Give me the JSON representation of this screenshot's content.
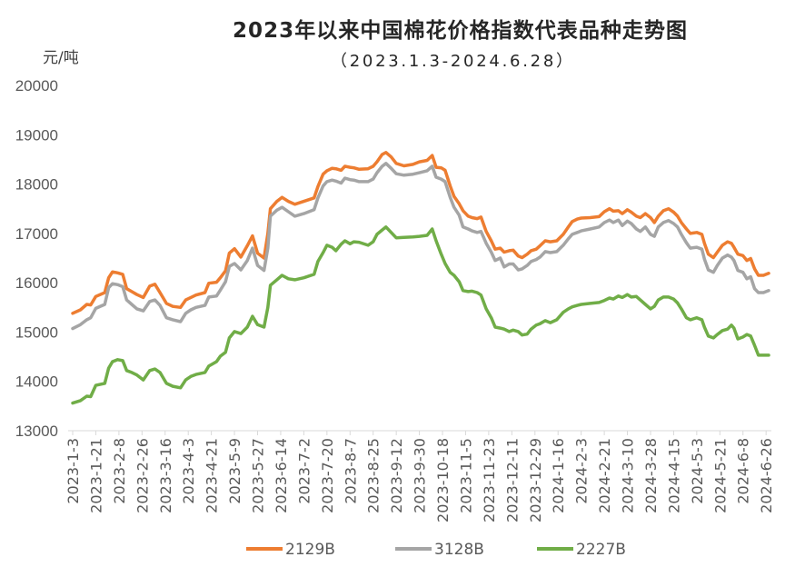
{
  "chart_data": {
    "type": "line",
    "title": "2023年以来中国棉花价格指数代表品种走势图",
    "subtitle": "（2023.1.3-2024.6.28）",
    "ylabel": "元/吨",
    "xlabel": "",
    "ylim": [
      13000,
      20000
    ],
    "xlim": [
      "2023-1-3",
      "2024-6-28"
    ],
    "grid": false,
    "legend_position": "bottom",
    "y_ticks": [
      20000,
      19000,
      18000,
      17000,
      16000,
      15000,
      14000,
      13000
    ],
    "x_tick_labels": [
      "2023-1-3",
      "2023-1-21",
      "2023-2-8",
      "2023-2-26",
      "2023-3-16",
      "2023-4-3",
      "2023-4-21",
      "2023-5-9",
      "2023-5-27",
      "2023-6-14",
      "2023-7-2",
      "2023-7-20",
      "2023-8-7",
      "2023-8-25",
      "2023-9-12",
      "2023-9-30",
      "2023-10-18",
      "2023-11-5",
      "2023-11-23",
      "2023-12-11",
      "2023-12-29",
      "2024-1-16",
      "2024-2-3",
      "2024-2-21",
      "2024-3-10",
      "2024-3-28",
      "2024-4-15",
      "2024-5-3",
      "2024-5-21",
      "2024-6-8",
      "2024-6-26"
    ],
    "x": [
      "2023-1-3",
      "2023-1-9",
      "2023-1-14",
      "2023-1-17",
      "2023-1-21",
      "2023-1-28",
      "2023-1-31",
      "2023-2-3",
      "2023-2-7",
      "2023-2-11",
      "2023-2-14",
      "2023-2-18",
      "2023-2-22",
      "2023-2-27",
      "2023-3-4",
      "2023-3-8",
      "2023-3-12",
      "2023-3-17",
      "2023-3-22",
      "2023-3-28",
      "2023-4-1",
      "2023-4-5",
      "2023-4-9",
      "2023-4-16",
      "2023-4-19",
      "2023-4-25",
      "2023-4-28",
      "2023-5-2",
      "2023-5-5",
      "2023-5-9",
      "2023-5-14",
      "2023-5-19",
      "2023-5-23",
      "2023-5-27",
      "2023-6-1",
      "2023-6-4",
      "2023-6-6",
      "2023-6-11",
      "2023-6-15",
      "2023-6-20",
      "2023-6-25",
      "2023-7-2",
      "2023-7-10",
      "2023-7-13",
      "2023-7-17",
      "2023-7-20",
      "2023-7-24",
      "2023-7-27",
      "2023-7-31",
      "2023-8-3",
      "2023-8-7",
      "2023-8-10",
      "2023-8-14",
      "2023-8-21",
      "2023-8-25",
      "2023-8-28",
      "2023-9-1",
      "2023-9-4",
      "2023-9-8",
      "2023-9-12",
      "2023-9-18",
      "2023-9-25",
      "2023-9-30",
      "2023-10-6",
      "2023-10-10",
      "2023-10-13",
      "2023-10-17",
      "2023-10-20",
      "2023-10-24",
      "2023-10-27",
      "2023-10-31",
      "2023-11-3",
      "2023-11-7",
      "2023-11-10",
      "2023-11-14",
      "2023-11-17",
      "2023-11-21",
      "2023-11-25",
      "2023-11-28",
      "2023-12-2",
      "2023-12-5",
      "2023-12-9",
      "2023-12-12",
      "2023-12-16",
      "2023-12-19",
      "2023-12-23",
      "2023-12-26",
      "2023-12-30",
      "2024-1-2",
      "2024-1-6",
      "2024-1-10",
      "2024-1-15",
      "2024-1-20",
      "2024-1-24",
      "2024-1-27",
      "2024-1-31",
      "2024-2-3",
      "2024-2-10",
      "2024-2-17",
      "2024-2-21",
      "2024-2-25",
      "2024-2-28",
      "2024-3-3",
      "2024-3-6",
      "2024-3-10",
      "2024-3-13",
      "2024-3-17",
      "2024-3-20",
      "2024-3-24",
      "2024-3-28",
      "2024-3-31",
      "2024-4-3",
      "2024-4-7",
      "2024-4-11",
      "2024-4-15",
      "2024-4-18",
      "2024-4-21",
      "2024-4-25",
      "2024-4-28",
      "2024-5-3",
      "2024-5-7",
      "2024-5-9",
      "2024-5-12",
      "2024-5-16",
      "2024-5-19",
      "2024-5-23",
      "2024-5-27",
      "2024-5-30",
      "2024-6-1",
      "2024-6-4",
      "2024-6-8",
      "2024-6-11",
      "2024-6-14",
      "2024-6-17",
      "2024-6-20",
      "2024-6-24",
      "2024-6-28"
    ],
    "series": [
      {
        "name": "2129B",
        "color": "#ED7D31",
        "values": [
          15380,
          15450,
          15560,
          15550,
          15720,
          15800,
          16100,
          16220,
          16200,
          16170,
          15880,
          15820,
          15760,
          15700,
          15930,
          15970,
          15800,
          15580,
          15520,
          15500,
          15650,
          15700,
          15750,
          15800,
          15990,
          16010,
          16100,
          16240,
          16600,
          16690,
          16520,
          16750,
          16950,
          16600,
          16500,
          17000,
          17500,
          17650,
          17730,
          17650,
          17590,
          17650,
          17720,
          17950,
          18200,
          18270,
          18320,
          18310,
          18280,
          18360,
          18340,
          18330,
          18300,
          18310,
          18360,
          18450,
          18600,
          18640,
          18550,
          18420,
          18370,
          18400,
          18450,
          18480,
          18580,
          18340,
          18330,
          18280,
          17960,
          17750,
          17600,
          17460,
          17350,
          17320,
          17300,
          17330,
          17040,
          16850,
          16680,
          16700,
          16620,
          16650,
          16660,
          16540,
          16510,
          16580,
          16650,
          16680,
          16750,
          16850,
          16830,
          16850,
          16980,
          17130,
          17240,
          17290,
          17310,
          17320,
          17340,
          17440,
          17500,
          17450,
          17460,
          17400,
          17480,
          17430,
          17350,
          17320,
          17400,
          17320,
          17220,
          17350,
          17460,
          17500,
          17430,
          17350,
          17220,
          17090,
          17000,
          17020,
          16980,
          16800,
          16580,
          16510,
          16620,
          16760,
          16830,
          16800,
          16720,
          16580,
          16550,
          16450,
          16490,
          16280,
          16150,
          16150,
          16190
        ]
      },
      {
        "name": "3128B",
        "color": "#A5A5A5",
        "values": [
          15070,
          15150,
          15250,
          15290,
          15480,
          15560,
          15900,
          15980,
          15960,
          15920,
          15650,
          15560,
          15470,
          15430,
          15620,
          15650,
          15540,
          15290,
          15250,
          15210,
          15380,
          15450,
          15500,
          15540,
          15710,
          15730,
          15850,
          16020,
          16330,
          16390,
          16260,
          16450,
          16700,
          16350,
          16250,
          16700,
          17350,
          17470,
          17530,
          17440,
          17350,
          17400,
          17480,
          17720,
          17960,
          18050,
          18080,
          18060,
          18020,
          18120,
          18090,
          18080,
          18050,
          18050,
          18100,
          18230,
          18360,
          18420,
          18320,
          18210,
          18180,
          18200,
          18230,
          18270,
          18360,
          18140,
          18100,
          18050,
          17730,
          17530,
          17370,
          17130,
          17090,
          17050,
          17020,
          17040,
          16800,
          16620,
          16450,
          16500,
          16320,
          16380,
          16380,
          16260,
          16280,
          16350,
          16430,
          16470,
          16520,
          16630,
          16610,
          16630,
          16760,
          16890,
          16980,
          17020,
          17050,
          17090,
          17130,
          17220,
          17270,
          17220,
          17270,
          17160,
          17250,
          17200,
          17090,
          17040,
          17130,
          16980,
          16940,
          17130,
          17220,
          17260,
          17200,
          17130,
          16980,
          16810,
          16700,
          16720,
          16680,
          16480,
          16260,
          16210,
          16350,
          16500,
          16560,
          16520,
          16450,
          16250,
          16210,
          16080,
          16120,
          15880,
          15800,
          15800,
          15840
        ]
      },
      {
        "name": "2227B",
        "color": "#70AD47",
        "values": [
          13560,
          13610,
          13700,
          13690,
          13920,
          13960,
          14270,
          14400,
          14440,
          14420,
          14220,
          14180,
          14130,
          14030,
          14220,
          14250,
          14180,
          13960,
          13900,
          13870,
          14030,
          14100,
          14140,
          14180,
          14310,
          14400,
          14510,
          14590,
          14880,
          15010,
          14970,
          15100,
          15320,
          15150,
          15100,
          15500,
          15950,
          16060,
          16150,
          16080,
          16060,
          16100,
          16170,
          16430,
          16610,
          16760,
          16720,
          16650,
          16780,
          16850,
          16790,
          16830,
          16820,
          16760,
          16830,
          16980,
          17070,
          17130,
          17020,
          16910,
          16920,
          16930,
          16940,
          16960,
          17090,
          16850,
          16580,
          16390,
          16210,
          16150,
          16020,
          15840,
          15820,
          15830,
          15800,
          15750,
          15470,
          15290,
          15100,
          15080,
          15060,
          15010,
          15040,
          15010,
          14940,
          14960,
          15060,
          15140,
          15170,
          15230,
          15190,
          15250,
          15400,
          15470,
          15510,
          15540,
          15560,
          15580,
          15600,
          15640,
          15690,
          15670,
          15730,
          15700,
          15760,
          15710,
          15720,
          15650,
          15560,
          15470,
          15520,
          15650,
          15710,
          15710,
          15670,
          15590,
          15470,
          15290,
          15250,
          15290,
          15250,
          15100,
          14920,
          14880,
          14950,
          15030,
          15060,
          15140,
          15080,
          14860,
          14900,
          14950,
          14920,
          14730,
          14530,
          14530,
          14530
        ]
      }
    ]
  }
}
